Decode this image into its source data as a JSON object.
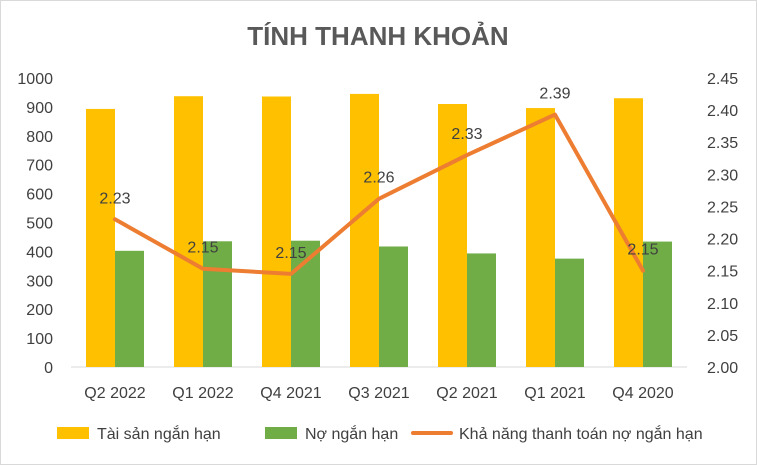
{
  "chart_data": {
    "type": "bar",
    "title": "TÍNH THANH KHOẢN",
    "categories": [
      "Q2 2022",
      "Q1 2022",
      "Q4 2021",
      "Q3 2021",
      "Q2 2021",
      "Q1 2021",
      "Q4 2020"
    ],
    "series": [
      {
        "name": "Tài sản ngắn hạn",
        "type": "bar",
        "axis": "left",
        "color": "#FFC000",
        "values": [
          893,
          937,
          936,
          945,
          910,
          896,
          930
        ]
      },
      {
        "name": "Nợ ngắn hạn",
        "type": "bar",
        "axis": "left",
        "color": "#70AD47",
        "values": [
          402,
          435,
          437,
          417,
          393,
          375,
          434
        ]
      },
      {
        "name": "Khả năng thanh toán nợ ngắn hạn",
        "type": "line",
        "axis": "right",
        "color": "#ED7D31",
        "values": [
          2.23,
          2.153,
          2.145,
          2.262,
          2.33,
          2.393,
          2.15
        ],
        "labels": [
          "2.23",
          "2.15",
          "2.15",
          "2.26",
          "2.33",
          "2.39",
          "2.15"
        ]
      }
    ],
    "y_left": {
      "min": 0,
      "max": 1000,
      "step": 100,
      "ticks": [
        "0",
        "100",
        "200",
        "300",
        "400",
        "500",
        "600",
        "700",
        "800",
        "900",
        "1000"
      ]
    },
    "y_right": {
      "min": 2.0,
      "max": 2.45,
      "step": 0.05,
      "ticks": [
        "2.00",
        "2.05",
        "2.10",
        "2.15",
        "2.20",
        "2.25",
        "2.30",
        "2.35",
        "2.40",
        "2.45"
      ]
    },
    "grid": false,
    "legend_position": "bottom"
  }
}
